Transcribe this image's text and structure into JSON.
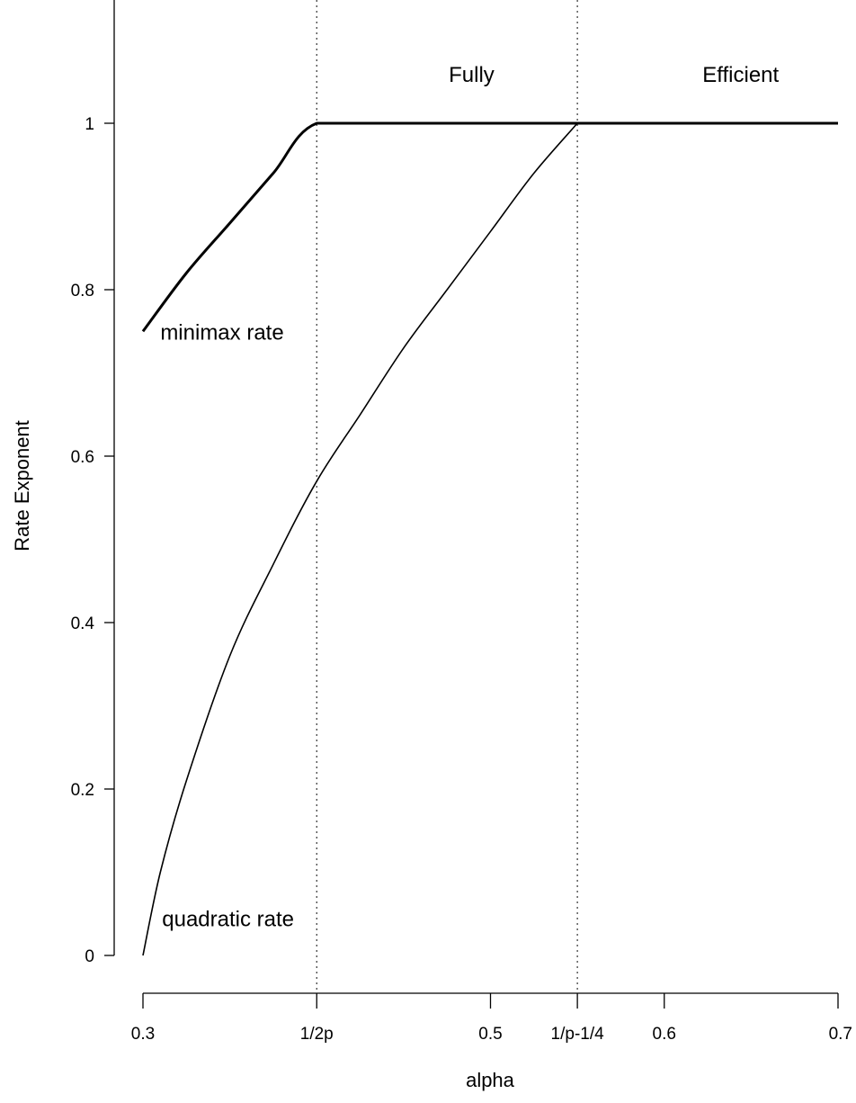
{
  "chart_data": {
    "type": "line",
    "title": "",
    "xlabel": "alpha",
    "ylabel": "Rate  Exponent",
    "xlim": [
      0.3,
      0.7
    ],
    "ylim": [
      0,
      1
    ],
    "x_ticks": [
      {
        "value": 0.3,
        "label": "0.3"
      },
      {
        "value": 0.4,
        "label": "1/2p"
      },
      {
        "value": 0.5,
        "label": "0.5"
      },
      {
        "value": 0.55,
        "label": "1/p-1/4"
      },
      {
        "value": 0.6,
        "label": "0.6"
      },
      {
        "value": 0.7,
        "label": "0.7"
      }
    ],
    "y_ticks": [
      {
        "value": 0,
        "label": "0"
      },
      {
        "value": 0.2,
        "label": "0.2"
      },
      {
        "value": 0.4,
        "label": "0.4"
      },
      {
        "value": 0.6,
        "label": "0.6"
      },
      {
        "value": 0.8,
        "label": "0.8"
      },
      {
        "value": 1,
        "label": "1"
      }
    ],
    "vlines": [
      0.4,
      0.55
    ],
    "grid": false,
    "series": [
      {
        "key": "minimax",
        "color": "#000000",
        "line": "thick",
        "points": [
          [
            0.3,
            0.75
          ],
          [
            0.325,
            0.82
          ],
          [
            0.35,
            0.88
          ],
          [
            0.375,
            0.94
          ],
          [
            0.4,
            1.0
          ],
          [
            0.45,
            1.0
          ],
          [
            0.5,
            1.0
          ],
          [
            0.55,
            1.0
          ],
          [
            0.6,
            1.0
          ],
          [
            0.65,
            1.0
          ],
          [
            0.7,
            1.0
          ]
        ]
      },
      {
        "key": "quadratic",
        "color": "#000000",
        "line": "thin",
        "points": [
          [
            0.3,
            0.0
          ],
          [
            0.31,
            0.1
          ],
          [
            0.325,
            0.21
          ],
          [
            0.35,
            0.36
          ],
          [
            0.375,
            0.47
          ],
          [
            0.4,
            0.57
          ],
          [
            0.425,
            0.65
          ],
          [
            0.45,
            0.73
          ],
          [
            0.475,
            0.8
          ],
          [
            0.5,
            0.87
          ],
          [
            0.525,
            0.94
          ],
          [
            0.55,
            1.0
          ]
        ]
      }
    ],
    "annotations": [
      {
        "text": "minimax rate",
        "x": 0.31,
        "y": 0.74
      },
      {
        "text": "quadratic rate",
        "x": 0.311,
        "y": 0.035
      },
      {
        "text": "Fully",
        "x": 0.476,
        "y": 1.05
      },
      {
        "text": "Efficient",
        "x": 0.622,
        "y": 1.05
      }
    ]
  }
}
